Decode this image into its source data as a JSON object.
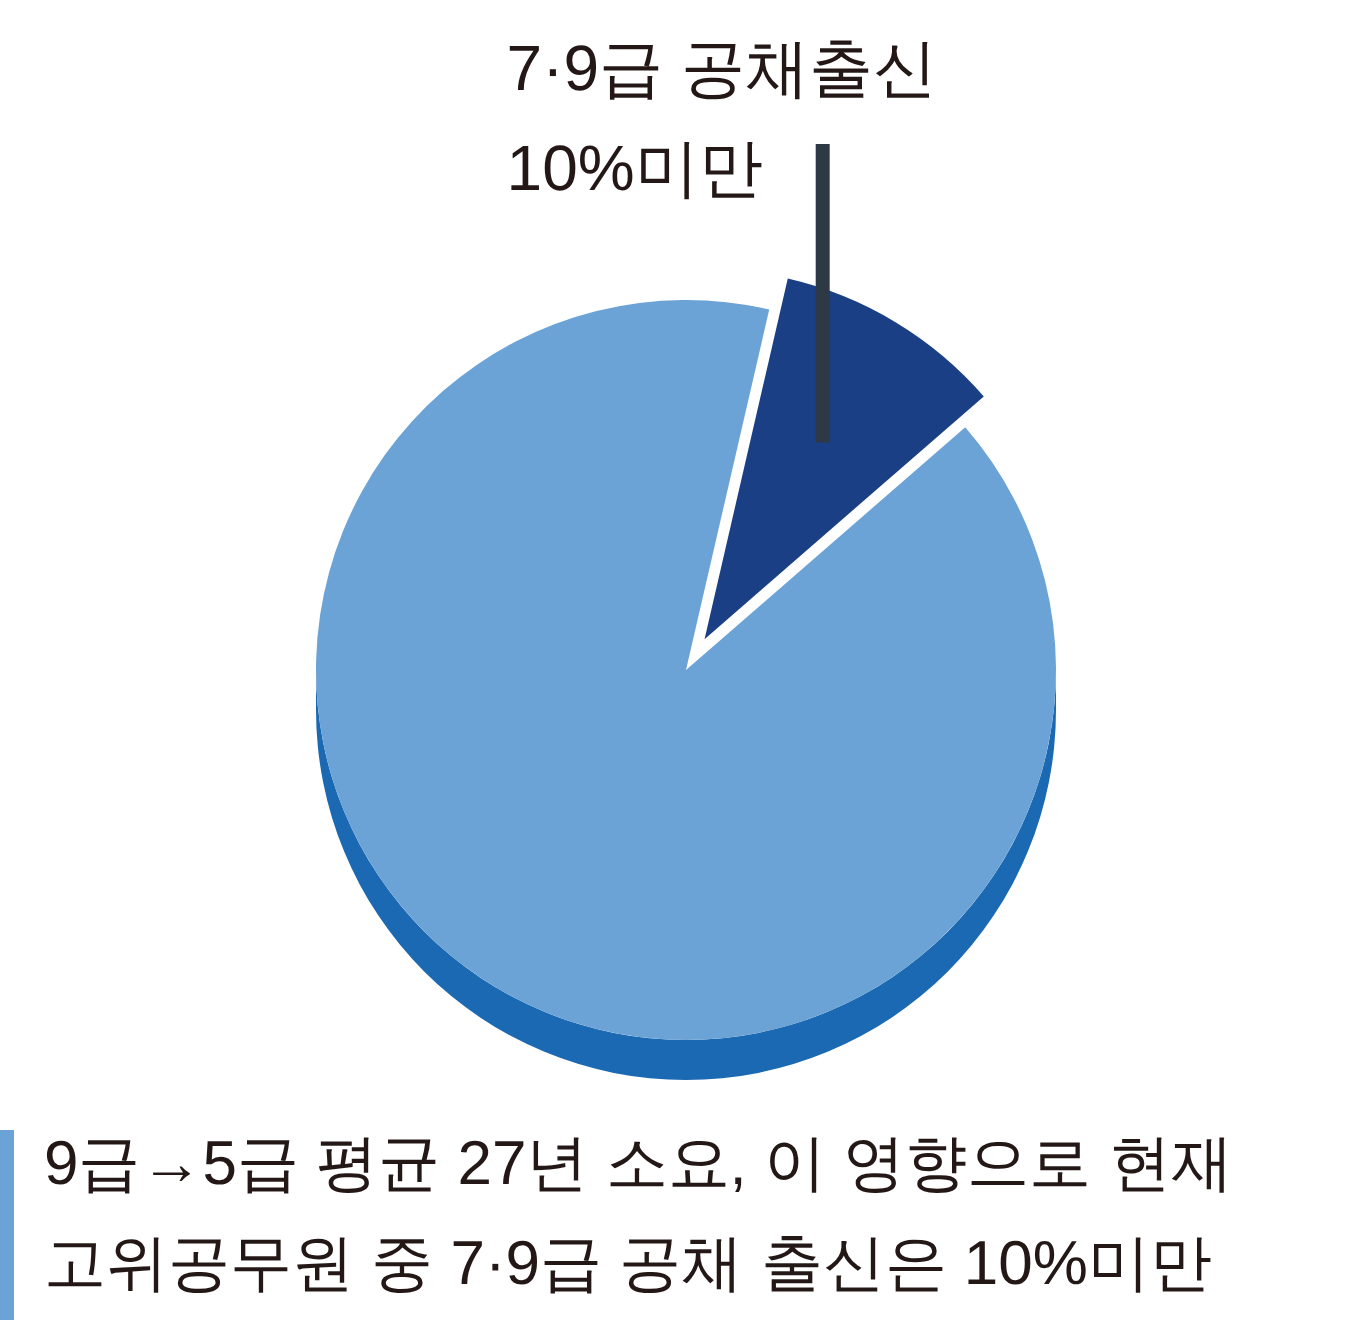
{
  "chart_data": {
    "type": "pie",
    "categories": [
      "7·9급 공채출신 10%미만",
      null
    ],
    "values": [
      10,
      90
    ],
    "colors": [
      "#1b3f84",
      "#6ca3d6"
    ],
    "annotations": [
      "9급→5급 평균 27년 소요, 이 영향으로 현재 고위공무원 중 7·9급 공채 출신은 10%미만"
    ]
  }
}
